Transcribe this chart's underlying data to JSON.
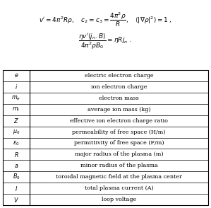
{
  "symbols": [
    "e",
    "i",
    "m_e",
    "m_i",
    "Z",
    "\\mu_0",
    "\\varepsilon_0",
    "R",
    "a",
    "B_0",
    "I",
    "V"
  ],
  "descriptions": [
    "electric electron charge",
    "ion electron charge",
    "electron mass",
    "average ion mass (kg)",
    "effective ion electron charge ratio",
    "permeability of free space (H/m)",
    "permittivity of free space (F/m)",
    "major radius of the plasma (m)",
    "minor radius of the plasma",
    "toroidal magnetic field at the plasma center",
    "total plasma current (A)",
    "loop voltage"
  ],
  "bg_color": "#ffffff",
  "text_color": "#000000",
  "font_size": 5.8,
  "eq_font_size": 6.5,
  "table_border_color": "#000000"
}
